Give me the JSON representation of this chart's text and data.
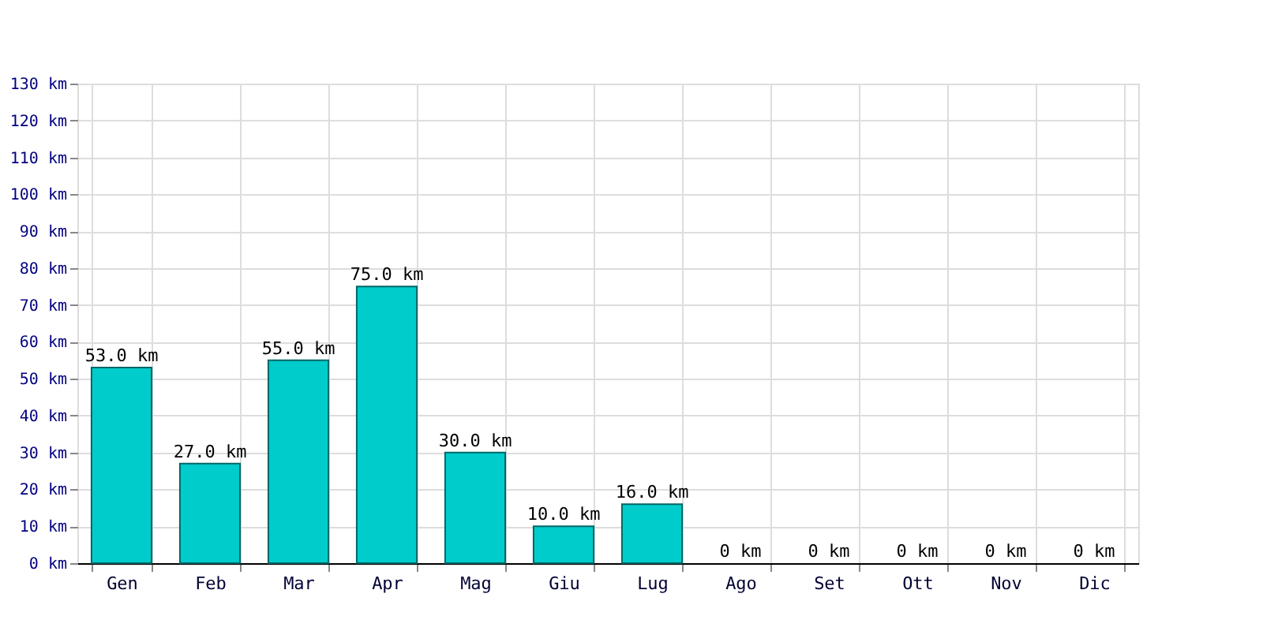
{
  "chart_data": {
    "type": "bar",
    "categories": [
      "Gen",
      "Feb",
      "Mar",
      "Apr",
      "Mag",
      "Giu",
      "Lug",
      "Ago",
      "Set",
      "Ott",
      "Nov",
      "Dic"
    ],
    "values": [
      53.0,
      27.0,
      55.0,
      75.0,
      30.0,
      10.0,
      16.0,
      0,
      0,
      0,
      0,
      0
    ],
    "value_labels": [
      "53.0 km",
      "27.0 km",
      "55.0 km",
      "75.0 km",
      "30.0 km",
      "10.0 km",
      "16.0 km",
      "0 km",
      "0 km",
      "0 km",
      "0 km",
      "0 km"
    ],
    "color": "#00cccc",
    "ylim": [
      0,
      130
    ],
    "yticks": [
      {
        "value": 0,
        "label": "0 km"
      },
      {
        "value": 10,
        "label": "10 km"
      },
      {
        "value": 20,
        "label": "20 km"
      },
      {
        "value": 30,
        "label": "30 km"
      },
      {
        "value": 40,
        "label": "40 km"
      },
      {
        "value": 50,
        "label": "50 km"
      },
      {
        "value": 60,
        "label": "60 km"
      },
      {
        "value": 70,
        "label": "70 km"
      },
      {
        "value": 80,
        "label": "80 km"
      },
      {
        "value": 90,
        "label": "90 km"
      },
      {
        "value": 100,
        "label": "100 km"
      },
      {
        "value": 110,
        "label": "110 km"
      },
      {
        "value": 120,
        "label": "120 km"
      },
      {
        "value": 130,
        "label": "130 km"
      }
    ],
    "grid": true
  }
}
